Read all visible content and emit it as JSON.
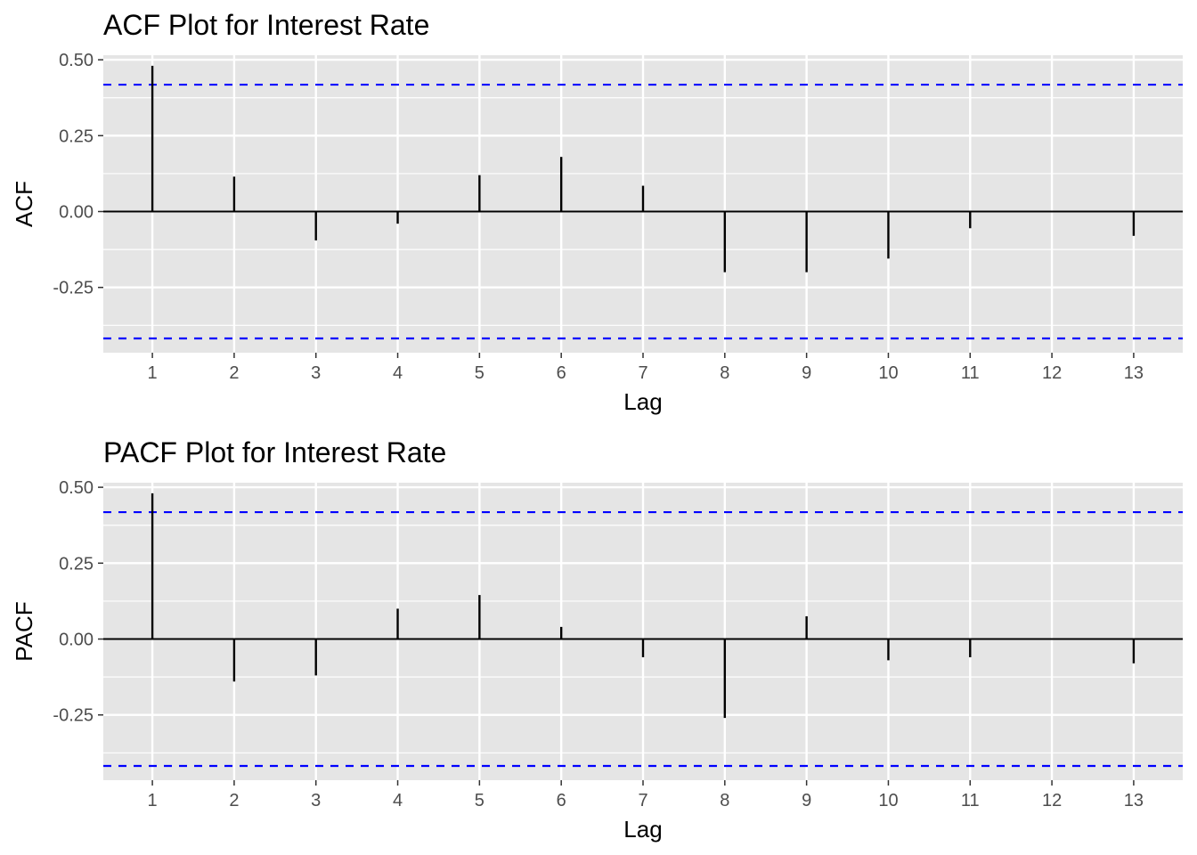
{
  "colors": {
    "panel_background": "#e5e5e5",
    "gridline": "#ffffff",
    "bar": "#000000",
    "confidence_line": "#0000ff"
  },
  "chart_data": [
    {
      "type": "bar",
      "title": "ACF Plot for Interest Rate",
      "xlabel": "Lag",
      "ylabel": "ACF",
      "x": [
        1,
        2,
        3,
        4,
        5,
        6,
        7,
        8,
        9,
        10,
        11,
        12,
        13
      ],
      "x_tick_labels": [
        "1",
        "2",
        "3",
        "4",
        "5",
        "6",
        "7",
        "8",
        "9",
        "10",
        "11",
        "12",
        "13"
      ],
      "values": [
        0.48,
        0.115,
        -0.095,
        -0.04,
        0.12,
        0.18,
        0.085,
        -0.2,
        -0.2,
        -0.155,
        -0.055,
        0.0,
        -0.08
      ],
      "confidence_bounds": [
        0.418,
        -0.418
      ],
      "y_ticks": [
        0.5,
        0.25,
        0.0,
        -0.25
      ],
      "y_tick_labels": [
        "0.50",
        "0.25",
        "0.00",
        "-0.25"
      ],
      "xlim": [
        0.4,
        13.6
      ],
      "ylim": [
        -0.465,
        0.515
      ],
      "grid": true,
      "legend": "none"
    },
    {
      "type": "bar",
      "title": "PACF Plot for Interest Rate",
      "xlabel": "Lag",
      "ylabel": "PACF",
      "x": [
        1,
        2,
        3,
        4,
        5,
        6,
        7,
        8,
        9,
        10,
        11,
        12,
        13
      ],
      "x_tick_labels": [
        "1",
        "2",
        "3",
        "4",
        "5",
        "6",
        "7",
        "8",
        "9",
        "10",
        "11",
        "12",
        "13"
      ],
      "values": [
        0.48,
        -0.14,
        -0.12,
        0.1,
        0.145,
        0.04,
        -0.06,
        -0.26,
        0.075,
        -0.07,
        -0.06,
        0.0,
        -0.08
      ],
      "confidence_bounds": [
        0.418,
        -0.418
      ],
      "y_ticks": [
        0.5,
        0.25,
        0.0,
        -0.25
      ],
      "y_tick_labels": [
        "0.50",
        "0.25",
        "0.00",
        "-0.25"
      ],
      "xlim": [
        0.4,
        13.6
      ],
      "ylim": [
        -0.465,
        0.515
      ],
      "grid": true,
      "legend": "none"
    }
  ]
}
